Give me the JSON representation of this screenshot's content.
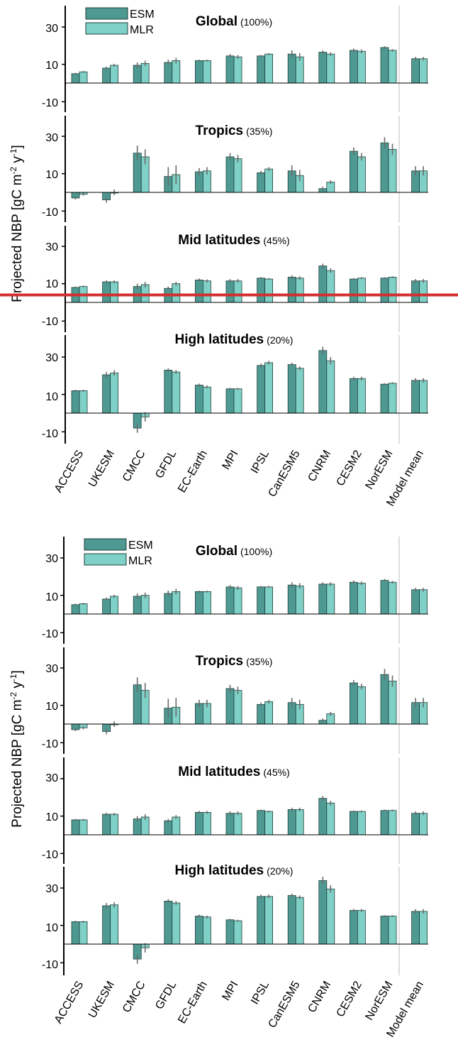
{
  "colors": {
    "esm": "#4e9a92",
    "mlr": "#7fd0c6",
    "bar_stroke": "#1f3f3b",
    "err": "#6b6b6b",
    "axis": "#000000",
    "divider": "#bdbdbd",
    "highlight": "#d32f2f"
  },
  "chart_data": [
    {
      "type": "bar",
      "figure": "top",
      "ylabel": "Projected NBP [gC m",
      "ylabel_sup1": "-2",
      "ylabel_mid": " y",
      "ylabel_sup2": "-1",
      "ylabel_end": "]",
      "legend": [
        "ESM",
        "MLR"
      ],
      "legend_position": "top-left",
      "categories": [
        "ACCESS",
        "UKESM",
        "CMCC",
        "GFDL",
        "EC-Earth",
        "MPI",
        "IPSL",
        "CanESM5",
        "CNRM",
        "CESM2",
        "NorESM",
        "Model mean"
      ],
      "yticks": [
        "30",
        "10",
        "-10"
      ],
      "ylim": [
        -15,
        42
      ],
      "has_reference_line": true,
      "reference_line_panel": 2,
      "reference_line_value": 4,
      "panels": [
        {
          "title": "Global",
          "share": "(100%)",
          "series": [
            {
              "name": "ESM",
              "values": [
                5,
                8,
                9.5,
                11,
                12,
                14.5,
                14.5,
                15.5,
                16.5,
                17.5,
                19,
                13
              ]
            },
            {
              "name": "MLR",
              "values": [
                6,
                9.5,
                10.5,
                12,
                12,
                14,
                15.5,
                14,
                15.5,
                17,
                17.5,
                13
              ]
            }
          ],
          "errors": [
            {
              "series": "ESM",
              "values": [
                0.5,
                0.8,
                1.5,
                1.5,
                0.5,
                1,
                0.5,
                2,
                1,
                1,
                0.7,
                1
              ]
            },
            {
              "series": "MLR",
              "values": [
                0.5,
                0.8,
                1.5,
                1.5,
                0.5,
                1,
                0.5,
                2,
                1,
                1,
                0.7,
                1
              ]
            }
          ]
        },
        {
          "title": "Tropics",
          "share": "(35%)",
          "series": [
            {
              "name": "ESM",
              "values": [
                -3,
                -4,
                21,
                8.5,
                11,
                19,
                10.5,
                11.5,
                2,
                22,
                26.5,
                11.5
              ]
            },
            {
              "name": "MLR",
              "values": [
                -1,
                0,
                19,
                9.5,
                11.5,
                18,
                12.5,
                9,
                5.5,
                19,
                23,
                11.5
              ]
            }
          ],
          "errors": [
            {
              "series": "ESM",
              "values": [
                0.8,
                1.5,
                4,
                5,
                2,
                2,
                1,
                3,
                1,
                2,
                3,
                2.5
              ]
            },
            {
              "series": "MLR",
              "values": [
                0.8,
                1.5,
                4,
                5,
                2,
                2,
                1,
                3,
                1,
                2,
                3,
                2.5
              ]
            }
          ]
        },
        {
          "title": "Mid latitudes",
          "share": "(45%)",
          "series": [
            {
              "name": "ESM",
              "values": [
                8,
                11,
                8.5,
                7.5,
                12,
                11.5,
                13,
                13.5,
                19.5,
                12.5,
                13,
                11.5
              ]
            },
            {
              "name": "MLR",
              "values": [
                8.5,
                11,
                9.5,
                10,
                11.5,
                11.5,
                12.5,
                13,
                17,
                13,
                13.5,
                11.5
              ]
            }
          ],
          "errors": [
            {
              "series": "ESM",
              "values": [
                0.5,
                0.8,
                1.5,
                1,
                0.8,
                1,
                0.5,
                1,
                1.2,
                0.5,
                0.5,
                1
              ]
            },
            {
              "series": "MLR",
              "values": [
                0.5,
                0.8,
                1.5,
                1,
                0.8,
                1,
                0.5,
                1,
                1.2,
                0.5,
                0.5,
                1
              ]
            }
          ]
        },
        {
          "title": "High latitudes",
          "share": "(20%)",
          "series": [
            {
              "name": "ESM",
              "values": [
                12,
                20.5,
                -8,
                23,
                15,
                13,
                25.5,
                26,
                33.5,
                18.5,
                15.5,
                17.5
              ]
            },
            {
              "name": "MLR",
              "values": [
                12,
                21.5,
                -2,
                22,
                14,
                13,
                27,
                24,
                28,
                18.5,
                16,
                17.5
              ]
            }
          ],
          "errors": [
            {
              "series": "ESM",
              "values": [
                0.5,
                1.5,
                2.5,
                1,
                0.8,
                0.5,
                1,
                1,
                2,
                1,
                0.5,
                1.2
              ]
            },
            {
              "series": "MLR",
              "values": [
                0.5,
                1.5,
                2.5,
                1,
                0.8,
                0.5,
                1,
                1,
                2,
                1,
                0.5,
                1.2
              ]
            }
          ]
        }
      ]
    },
    {
      "type": "bar",
      "figure": "bottom",
      "ylabel": "Projected NBP [gC m",
      "ylabel_sup1": "-2",
      "ylabel_mid": " y",
      "ylabel_sup2": "-1",
      "ylabel_end": "]",
      "legend": [
        "ESM",
        "MLR"
      ],
      "legend_position": "top-left",
      "categories": [
        "ACCESS",
        "UKESM",
        "CMCC",
        "GFDL",
        "EC-Earth",
        "MPI",
        "IPSL",
        "CanESM5",
        "CNRM",
        "CESM2",
        "NorESM",
        "Model mean"
      ],
      "yticks": [
        "30",
        "10",
        "-10"
      ],
      "ylim": [
        -15,
        42
      ],
      "has_reference_line": false,
      "panels": [
        {
          "title": "Global",
          "share": "(100%)",
          "series": [
            {
              "name": "ESM",
              "values": [
                5,
                8,
                9.5,
                11,
                12,
                14.5,
                14.5,
                15.5,
                16,
                17,
                18,
                13
              ]
            },
            {
              "name": "MLR",
              "values": [
                5.5,
                9.5,
                10,
                12,
                12,
                14,
                14.5,
                15,
                16,
                16.5,
                17,
                13
              ]
            }
          ],
          "errors": [
            {
              "series": "ESM",
              "values": [
                0.5,
                0.8,
                1.5,
                1.5,
                0.5,
                1,
                0.5,
                1.5,
                1,
                1,
                0.7,
                1
              ]
            },
            {
              "series": "MLR",
              "values": [
                0.5,
                0.8,
                1.5,
                1.5,
                0.5,
                1,
                0.5,
                1.5,
                1,
                1,
                0.7,
                1
              ]
            }
          ]
        },
        {
          "title": "Tropics",
          "share": "(35%)",
          "series": [
            {
              "name": "ESM",
              "values": [
                -3,
                -4,
                21,
                8.5,
                11,
                19,
                10.5,
                11.5,
                2,
                22,
                26.5,
                11.5
              ]
            },
            {
              "name": "MLR",
              "values": [
                -2,
                0,
                18,
                9,
                11,
                18,
                12,
                10.5,
                5.5,
                20,
                23,
                11.5
              ]
            }
          ],
          "errors": [
            {
              "series": "ESM",
              "values": [
                0.8,
                1.5,
                4,
                5,
                2,
                2,
                1,
                2.5,
                1,
                1.5,
                3,
                2.5
              ]
            },
            {
              "series": "MLR",
              "values": [
                0.8,
                1.5,
                4,
                5,
                2,
                2,
                1,
                2.5,
                1,
                1.5,
                3,
                2.5
              ]
            }
          ]
        },
        {
          "title": "Mid latitudes",
          "share": "(45%)",
          "series": [
            {
              "name": "ESM",
              "values": [
                8,
                11,
                8.5,
                7.5,
                12,
                11.5,
                13,
                13.5,
                19.5,
                12.5,
                13,
                11.5
              ]
            },
            {
              "name": "MLR",
              "values": [
                8,
                11,
                9.5,
                9.5,
                12,
                11.5,
                12.5,
                13.5,
                17,
                12.5,
                13,
                11.5
              ]
            }
          ],
          "errors": [
            {
              "series": "ESM",
              "values": [
                0.5,
                0.8,
                1.5,
                1,
                0.8,
                1,
                0.5,
                1,
                1.2,
                0.5,
                0.5,
                1
              ]
            },
            {
              "series": "MLR",
              "values": [
                0.5,
                0.8,
                1.5,
                1,
                0.8,
                1,
                0.5,
                1,
                1.2,
                0.5,
                0.5,
                1
              ]
            }
          ]
        },
        {
          "title": "High latitudes",
          "share": "(20%)",
          "series": [
            {
              "name": "ESM",
              "values": [
                12,
                20.5,
                -8,
                23,
                15,
                13,
                25.5,
                26,
                34,
                18,
                15,
                17.5
              ]
            },
            {
              "name": "MLR",
              "values": [
                12,
                21,
                -2,
                22,
                14.5,
                12.5,
                25.5,
                25,
                29.5,
                18,
                15,
                17.5
              ]
            }
          ],
          "errors": [
            {
              "series": "ESM",
              "values": [
                0.5,
                1.5,
                2.5,
                1,
                0.8,
                0.5,
                1,
                1,
                2,
                0.8,
                0.5,
                1.2
              ]
            },
            {
              "series": "MLR",
              "values": [
                0.5,
                1.5,
                2.5,
                1,
                0.8,
                0.5,
                1,
                1,
                2,
                0.8,
                0.5,
                1.2
              ]
            }
          ]
        }
      ]
    }
  ]
}
